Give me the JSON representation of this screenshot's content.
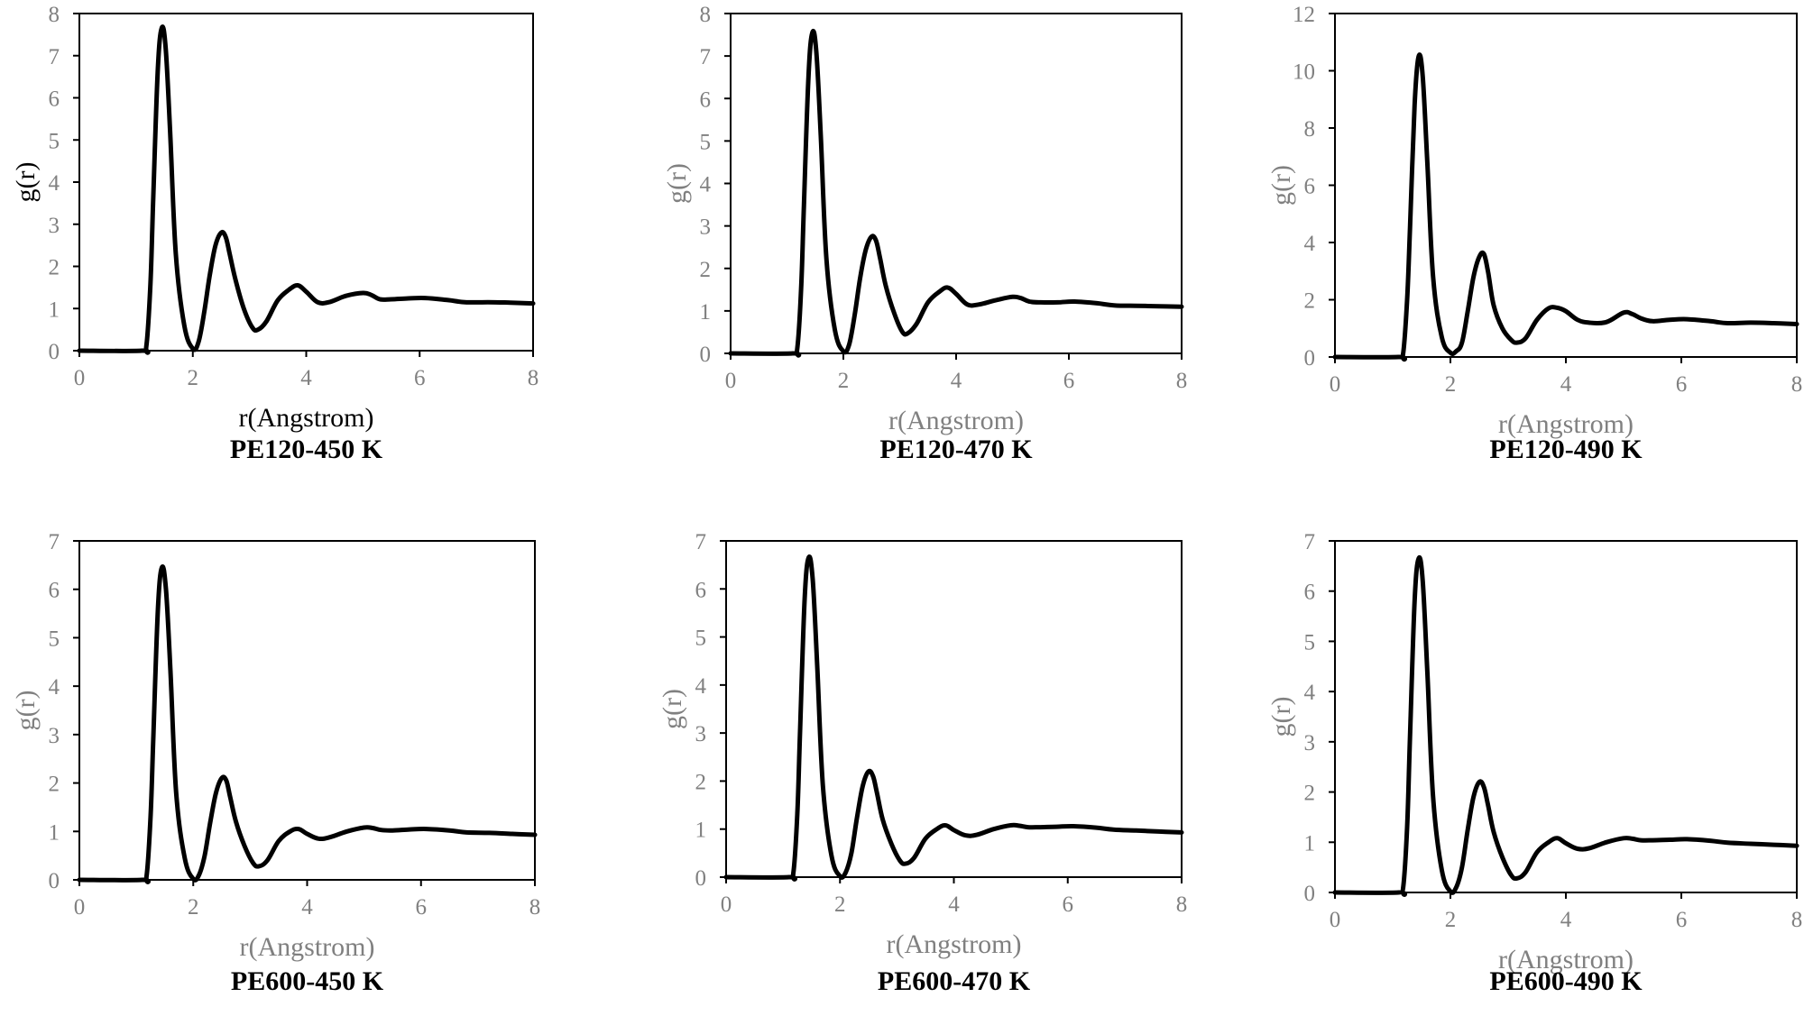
{
  "figure": {
    "axis_color": "#808080",
    "line_color": "#000000",
    "label_color_dark": "#000000",
    "label_color_grey": "#808080"
  },
  "chart_data": [
    {
      "type": "line",
      "caption": "PE120-450 K",
      "xlabel": "r(Angstrom)",
      "ylabel": "g(r)",
      "xlim": [
        0,
        8
      ],
      "ylim": [
        0,
        8
      ],
      "xticks": [
        0,
        2,
        4,
        6,
        8
      ],
      "yticks": [
        0,
        1,
        2,
        3,
        4,
        5,
        6,
        7,
        8
      ],
      "grid": false,
      "legend": "none",
      "series": [
        {
          "x": [
            0,
            1.1,
            1.18,
            1.25,
            1.3,
            1.38,
            1.45,
            1.52,
            1.6,
            1.7,
            1.85,
            2.0,
            2.1,
            2.2,
            2.3,
            2.4,
            2.5,
            2.58,
            2.65,
            2.75,
            2.9,
            3.05,
            3.15,
            3.3,
            3.5,
            3.7,
            3.85,
            4.0,
            4.2,
            4.4,
            4.7,
            5.0,
            5.15,
            5.3,
            5.5,
            5.8,
            6.1,
            6.5,
            6.8,
            7.2,
            7.6,
            8.0
          ],
          "y": [
            0,
            0,
            0.1,
            1.5,
            3.5,
            6.6,
            7.65,
            7.2,
            5.2,
            2.3,
            0.6,
            0.05,
            0.2,
            0.9,
            1.8,
            2.5,
            2.8,
            2.7,
            2.3,
            1.7,
            1.0,
            0.55,
            0.5,
            0.7,
            1.2,
            1.45,
            1.55,
            1.4,
            1.15,
            1.15,
            1.3,
            1.37,
            1.32,
            1.22,
            1.22,
            1.24,
            1.25,
            1.2,
            1.15,
            1.15,
            1.14,
            1.12
          ]
        }
      ]
    },
    {
      "type": "line",
      "caption": "PE120-470 K",
      "xlabel": "r(Angstrom)",
      "ylabel": "g(r)",
      "xlim": [
        0,
        8
      ],
      "ylim": [
        0,
        8
      ],
      "xticks": [
        0,
        2,
        4,
        6,
        8
      ],
      "yticks": [
        0,
        1,
        2,
        3,
        4,
        5,
        6,
        7,
        8
      ],
      "grid": false,
      "legend": "none",
      "series": [
        {
          "x": [
            0,
            1.1,
            1.18,
            1.25,
            1.3,
            1.38,
            1.45,
            1.52,
            1.6,
            1.7,
            1.85,
            2.0,
            2.1,
            2.2,
            2.3,
            2.4,
            2.5,
            2.58,
            2.65,
            2.75,
            2.9,
            3.05,
            3.15,
            3.3,
            3.5,
            3.7,
            3.85,
            4.0,
            4.2,
            4.4,
            4.7,
            5.0,
            5.15,
            5.3,
            5.5,
            5.8,
            6.1,
            6.5,
            6.8,
            7.2,
            7.6,
            8.0
          ],
          "y": [
            0,
            0,
            0.1,
            1.5,
            3.5,
            6.5,
            7.55,
            7.1,
            5.1,
            2.2,
            0.55,
            0.05,
            0.2,
            0.9,
            1.8,
            2.45,
            2.75,
            2.65,
            2.25,
            1.6,
            0.95,
            0.5,
            0.48,
            0.7,
            1.2,
            1.45,
            1.55,
            1.4,
            1.15,
            1.15,
            1.25,
            1.33,
            1.3,
            1.22,
            1.2,
            1.2,
            1.22,
            1.18,
            1.13,
            1.12,
            1.11,
            1.1
          ]
        }
      ]
    },
    {
      "type": "line",
      "caption": "PE120-490 K",
      "xlabel": "r(Angstrom)",
      "ylabel": "g(r)",
      "xlim": [
        0,
        8
      ],
      "ylim": [
        0,
        12
      ],
      "xticks": [
        0,
        2,
        4,
        6,
        8
      ],
      "yticks": [
        0,
        2,
        4,
        6,
        8,
        10,
        12
      ],
      "grid": false,
      "legend": "none",
      "series": [
        {
          "x": [
            0,
            1.1,
            1.18,
            1.25,
            1.3,
            1.38,
            1.45,
            1.52,
            1.6,
            1.7,
            1.85,
            2.0,
            2.1,
            2.2,
            2.3,
            2.4,
            2.5,
            2.58,
            2.65,
            2.75,
            2.9,
            3.05,
            3.15,
            3.3,
            3.5,
            3.7,
            3.85,
            4.0,
            4.2,
            4.4,
            4.7,
            5.0,
            5.15,
            5.3,
            5.5,
            5.8,
            6.1,
            6.5,
            6.8,
            7.2,
            7.6,
            8.0
          ],
          "y": [
            0,
            0,
            0.1,
            2.0,
            4.5,
            8.8,
            10.5,
            9.8,
            6.8,
            2.8,
            0.7,
            0.15,
            0.2,
            0.5,
            1.6,
            2.8,
            3.5,
            3.6,
            3.0,
            1.8,
            1.0,
            0.6,
            0.5,
            0.65,
            1.3,
            1.7,
            1.72,
            1.6,
            1.3,
            1.2,
            1.22,
            1.55,
            1.5,
            1.35,
            1.25,
            1.3,
            1.32,
            1.25,
            1.18,
            1.2,
            1.18,
            1.15
          ]
        }
      ]
    },
    {
      "type": "line",
      "caption": "PE600-450 K",
      "xlabel": "r(Angstrom)",
      "ylabel": "g(r)",
      "xlim": [
        0,
        8
      ],
      "ylim": [
        0,
        7
      ],
      "xticks": [
        0,
        2,
        4,
        6,
        8
      ],
      "yticks": [
        0,
        1,
        2,
        3,
        4,
        5,
        6,
        7
      ],
      "grid": false,
      "legend": "none",
      "series": [
        {
          "x": [
            0,
            1.1,
            1.18,
            1.25,
            1.3,
            1.38,
            1.45,
            1.52,
            1.6,
            1.7,
            1.85,
            2.0,
            2.1,
            2.2,
            2.3,
            2.4,
            2.5,
            2.58,
            2.65,
            2.75,
            2.9,
            3.05,
            3.15,
            3.3,
            3.5,
            3.7,
            3.85,
            4.0,
            4.2,
            4.4,
            4.7,
            5.0,
            5.15,
            5.3,
            5.5,
            5.8,
            6.1,
            6.5,
            6.8,
            7.2,
            7.6,
            8.0
          ],
          "y": [
            0,
            0,
            0.08,
            1.3,
            3.0,
            5.6,
            6.45,
            6.0,
            4.3,
            1.8,
            0.45,
            0.02,
            0.1,
            0.5,
            1.2,
            1.8,
            2.1,
            2.05,
            1.7,
            1.2,
            0.7,
            0.35,
            0.28,
            0.4,
            0.8,
            1.0,
            1.05,
            0.95,
            0.85,
            0.88,
            1.0,
            1.08,
            1.07,
            1.03,
            1.02,
            1.04,
            1.05,
            1.02,
            0.98,
            0.97,
            0.95,
            0.93
          ]
        }
      ]
    },
    {
      "type": "line",
      "caption": "PE600-470 K",
      "xlabel": "r(Angstrom)",
      "ylabel": "g(r)",
      "xlim": [
        0,
        8
      ],
      "ylim": [
        0,
        7
      ],
      "xticks": [
        0,
        2,
        4,
        6,
        8
      ],
      "yticks": [
        0,
        1,
        2,
        3,
        4,
        5,
        6,
        7
      ],
      "grid": false,
      "legend": "none",
      "series": [
        {
          "x": [
            0,
            1.1,
            1.18,
            1.25,
            1.3,
            1.38,
            1.45,
            1.52,
            1.6,
            1.7,
            1.85,
            2.0,
            2.1,
            2.2,
            2.3,
            2.4,
            2.5,
            2.58,
            2.65,
            2.75,
            2.9,
            3.05,
            3.15,
            3.3,
            3.5,
            3.7,
            3.85,
            4.0,
            4.2,
            4.4,
            4.7,
            5.0,
            5.15,
            5.3,
            5.5,
            5.8,
            6.1,
            6.5,
            6.8,
            7.2,
            7.6,
            8.0
          ],
          "y": [
            0,
            0,
            0.08,
            1.3,
            3.1,
            5.8,
            6.65,
            6.2,
            4.4,
            1.9,
            0.45,
            0.02,
            0.1,
            0.5,
            1.25,
            1.9,
            2.2,
            2.1,
            1.75,
            1.2,
            0.7,
            0.35,
            0.28,
            0.4,
            0.8,
            1.0,
            1.08,
            0.98,
            0.87,
            0.88,
            1.0,
            1.08,
            1.07,
            1.04,
            1.04,
            1.05,
            1.06,
            1.03,
            0.99,
            0.97,
            0.95,
            0.93
          ]
        }
      ]
    },
    {
      "type": "line",
      "caption": "PE600-490 K",
      "xlabel": "r(Angstrom)",
      "ylabel": "g(r)",
      "xlim": [
        0,
        8
      ],
      "ylim": [
        0,
        7
      ],
      "xticks": [
        0,
        2,
        4,
        6,
        8
      ],
      "yticks": [
        0,
        1,
        2,
        3,
        4,
        5,
        6,
        7
      ],
      "grid": false,
      "legend": "none",
      "series": [
        {
          "x": [
            0,
            1.1,
            1.18,
            1.25,
            1.3,
            1.38,
            1.45,
            1.52,
            1.6,
            1.7,
            1.85,
            2.0,
            2.1,
            2.2,
            2.3,
            2.4,
            2.5,
            2.58,
            2.65,
            2.75,
            2.9,
            3.05,
            3.15,
            3.3,
            3.5,
            3.7,
            3.85,
            4.0,
            4.2,
            4.4,
            4.7,
            5.0,
            5.15,
            5.3,
            5.5,
            5.8,
            6.1,
            6.5,
            6.8,
            7.2,
            7.6,
            8.0
          ],
          "y": [
            0,
            0,
            0.08,
            1.3,
            3.1,
            5.8,
            6.65,
            6.2,
            4.4,
            1.9,
            0.45,
            0.02,
            0.1,
            0.5,
            1.25,
            1.9,
            2.2,
            2.1,
            1.75,
            1.2,
            0.7,
            0.35,
            0.28,
            0.4,
            0.8,
            1.0,
            1.08,
            0.98,
            0.87,
            0.88,
            1.0,
            1.08,
            1.07,
            1.04,
            1.04,
            1.05,
            1.06,
            1.03,
            0.99,
            0.97,
            0.95,
            0.93
          ]
        }
      ]
    }
  ]
}
